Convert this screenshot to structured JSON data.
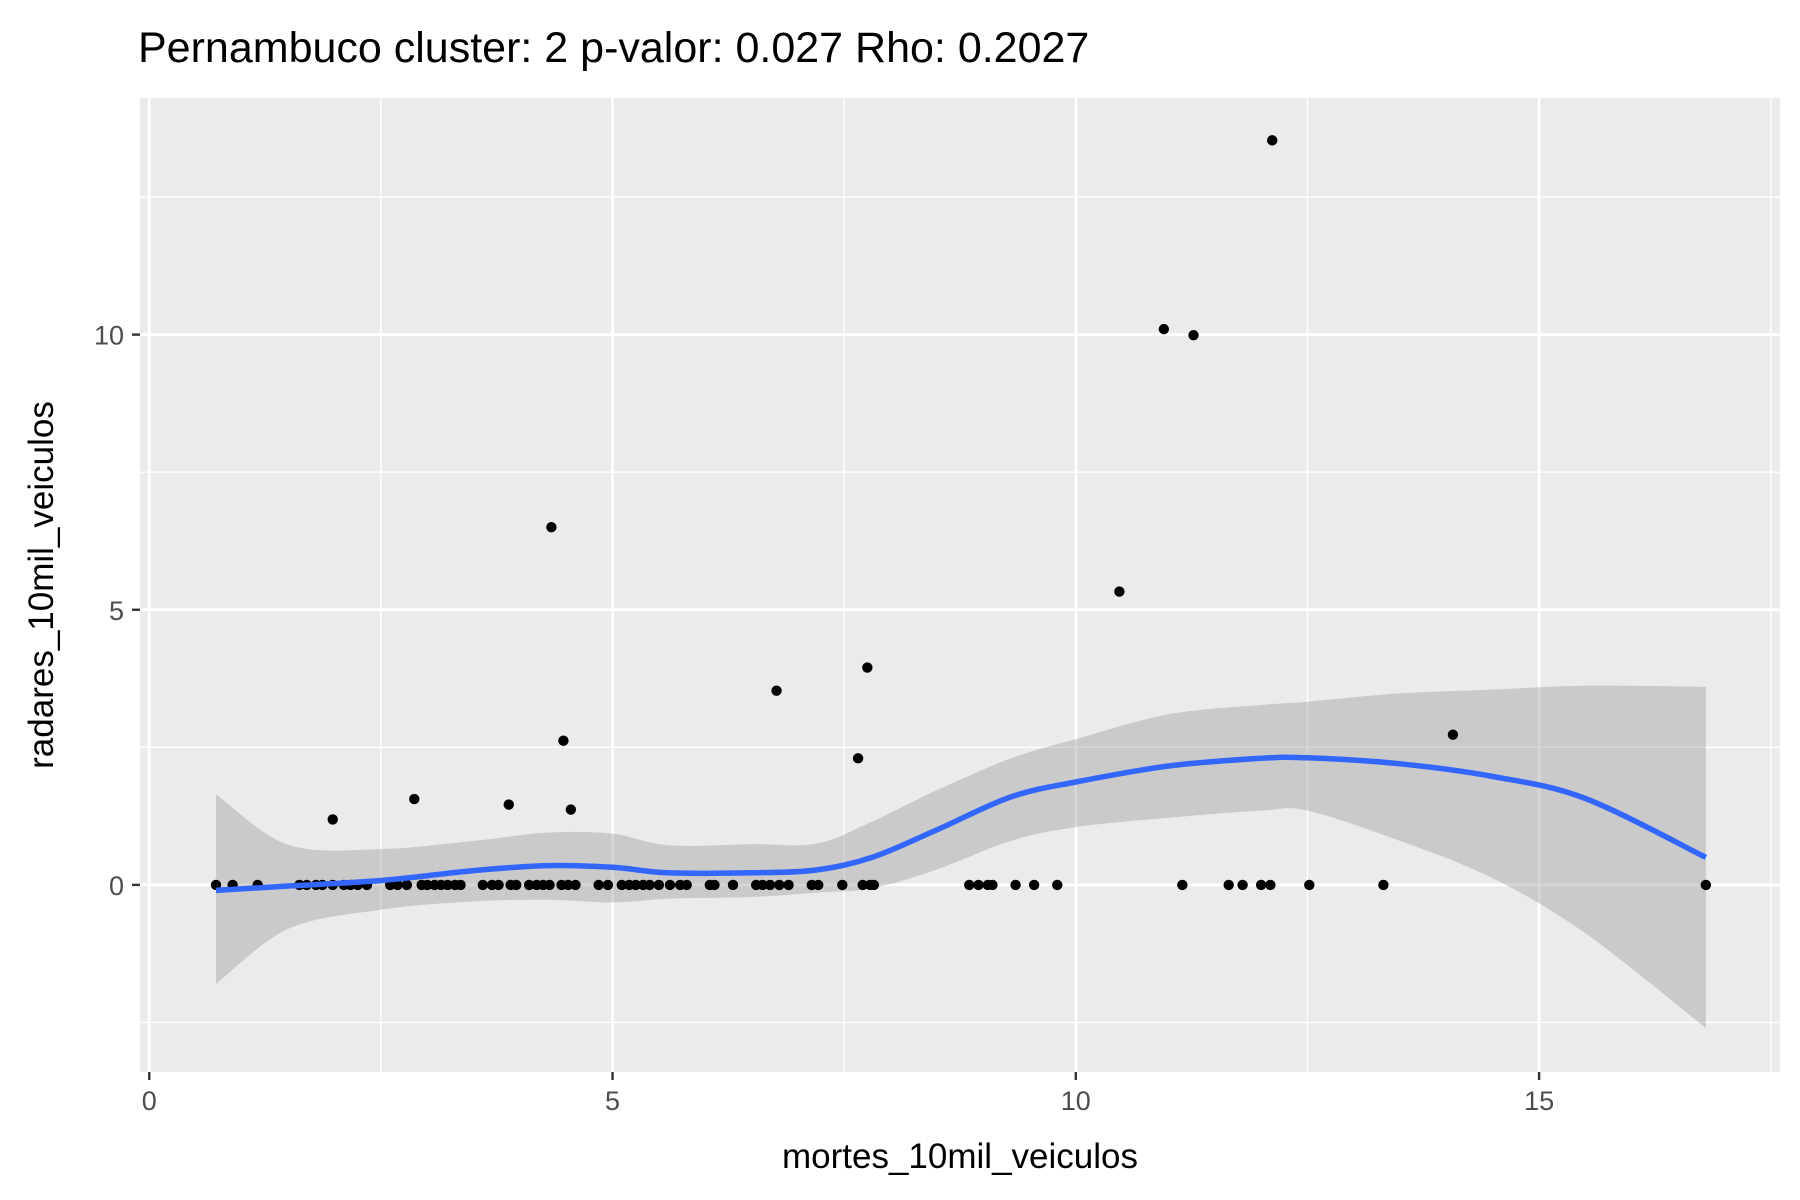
{
  "chart_data": {
    "type": "scatter",
    "title": "Pernambuco cluster: 2 p-valor: 0.027 Rho: 0.2027",
    "xlabel": "mortes_10mil_veiculos",
    "ylabel": "radares_10mil_veiculos",
    "xlim": [
      -0.1,
      17.6
    ],
    "ylim": [
      -3.4,
      14.3
    ],
    "xticks": [
      0,
      5,
      10,
      15
    ],
    "yticks": [
      0,
      5,
      10
    ],
    "grid": true,
    "legend": "none",
    "colors": {
      "panel": "#ebebeb",
      "grid": "#ffffff",
      "point": "#000000",
      "smooth_line": "#3366ff",
      "ribbon": "#bebebe"
    },
    "points": {
      "x": [
        0.72,
        0.9,
        1.17,
        1.62,
        1.7,
        1.8,
        1.87,
        1.98,
        2.1,
        2.17,
        2.25,
        2.35,
        2.6,
        2.68,
        2.78,
        2.94,
        3.0,
        3.08,
        3.15,
        3.22,
        3.3,
        3.36,
        3.6,
        3.7,
        3.77,
        3.9,
        3.96,
        4.1,
        4.18,
        4.25,
        4.32,
        4.45,
        4.52,
        4.6,
        4.85,
        4.95,
        5.1,
        5.18,
        5.25,
        5.33,
        5.4,
        5.5,
        5.62,
        5.73,
        5.8,
        6.05,
        6.1,
        6.3,
        6.55,
        6.62,
        6.7,
        6.8,
        6.9,
        7.15,
        7.22,
        7.48,
        7.7,
        7.78,
        7.82,
        8.85,
        8.95,
        9.05,
        9.1,
        9.35,
        9.55,
        9.8,
        11.15,
        11.65,
        11.8,
        12.0,
        12.1,
        12.52,
        13.32,
        16.8,
        1.98,
        2.86,
        3.88,
        4.34,
        4.47,
        4.55,
        6.77,
        7.65,
        7.75,
        10.47,
        10.95,
        11.27,
        12.12,
        14.07
      ],
      "y": [
        0,
        0,
        0,
        0,
        0,
        0,
        0,
        0,
        0,
        0,
        0,
        0,
        0,
        0,
        0,
        0,
        0,
        0,
        0,
        0,
        0,
        0,
        0,
        0,
        0,
        0,
        0,
        0,
        0,
        0,
        0,
        0,
        0,
        0,
        0,
        0,
        0,
        0,
        0,
        0,
        0,
        0,
        0,
        0,
        0,
        0,
        0,
        0,
        0,
        0,
        0,
        0,
        0,
        0,
        0,
        0,
        0,
        0,
        0,
        0,
        0,
        0,
        0,
        0,
        0,
        0,
        0,
        0,
        0,
        0,
        0,
        0,
        0,
        0,
        1.19,
        1.56,
        1.46,
        6.5,
        2.62,
        1.37,
        3.53,
        2.3,
        3.95,
        5.33,
        10.1,
        9.99,
        13.53,
        2.73
      ]
    },
    "smooth": {
      "x": [
        0.72,
        1.5,
        2.5,
        3.5,
        4.3,
        5.0,
        5.6,
        6.5,
        7.2,
        7.8,
        8.5,
        9.3,
        10.0,
        11.0,
        12.0,
        12.5,
        13.5,
        14.5,
        15.5,
        16.8
      ],
      "y": [
        -0.1,
        -0.02,
        0.08,
        0.26,
        0.35,
        0.32,
        0.22,
        0.22,
        0.27,
        0.5,
        1.0,
        1.6,
        1.87,
        2.16,
        2.3,
        2.31,
        2.2,
        1.97,
        1.57,
        0.5
      ],
      "lower": [
        -1.8,
        -0.8,
        -0.45,
        -0.3,
        -0.27,
        -0.32,
        -0.25,
        -0.22,
        -0.14,
        -0.06,
        0.28,
        0.8,
        1.05,
        1.22,
        1.35,
        1.35,
        0.8,
        0.12,
        -0.88,
        -2.6
      ],
      "upper": [
        1.65,
        0.73,
        0.65,
        0.8,
        0.95,
        0.93,
        0.72,
        0.74,
        0.75,
        1.15,
        1.72,
        2.3,
        2.65,
        3.1,
        3.27,
        3.33,
        3.48,
        3.55,
        3.62,
        3.6
      ]
    }
  }
}
